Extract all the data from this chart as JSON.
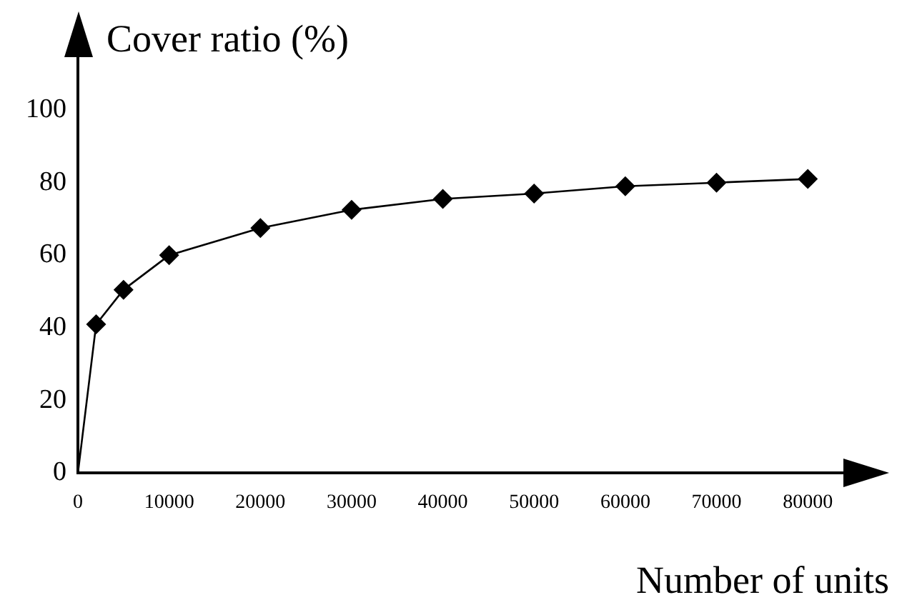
{
  "chart_data": {
    "type": "line",
    "xlabel": "Number of units",
    "ylabel": "Cover ratio (%)",
    "x": [
      0,
      2000,
      5000,
      10000,
      20000,
      30000,
      40000,
      50000,
      60000,
      70000,
      80000
    ],
    "series": [
      {
        "color": "#000000",
        "values": [
          0,
          41,
          50.5,
          60,
          67.5,
          72.5,
          75.5,
          77,
          79,
          80,
          81
        ]
      }
    ],
    "xlim": [
      0,
      85000
    ],
    "xticks": [
      0,
      10000,
      20000,
      30000,
      40000,
      50000,
      60000,
      70000,
      80000
    ],
    "ylim": [
      0,
      100
    ],
    "yticks": [
      0,
      20,
      40,
      60,
      80,
      100
    ],
    "grid": false,
    "legend": false,
    "marker": "diamond",
    "line_style": "solid"
  }
}
